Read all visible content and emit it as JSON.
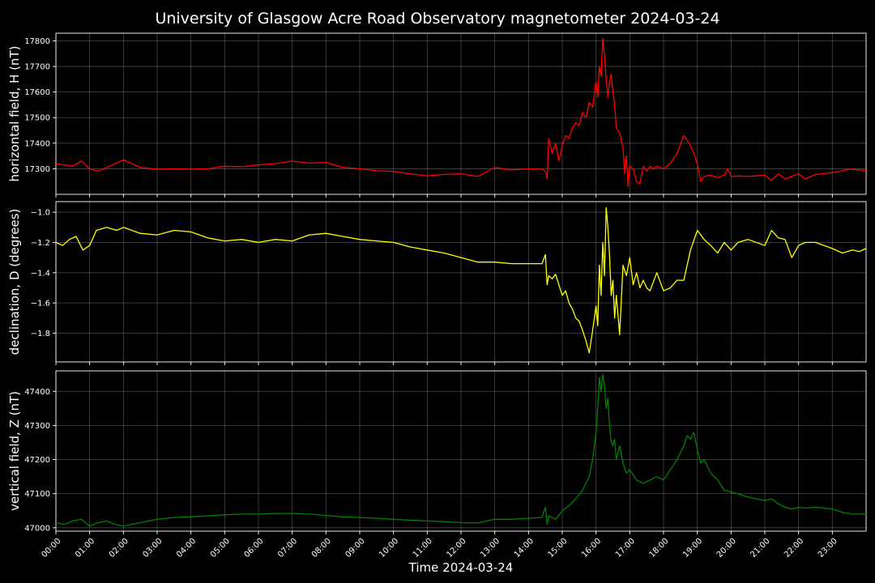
{
  "chart_data": {
    "type": "line",
    "title": "University of Glasgow Acre Road Observatory magnetometer 2024-03-24",
    "xlabel": "Time 2024-03-24",
    "x_unit": "hours",
    "xlim": [
      0,
      24
    ],
    "x_ticks": [
      0,
      1,
      2,
      3,
      4,
      5,
      6,
      7,
      8,
      9,
      10,
      11,
      12,
      13,
      14,
      15,
      16,
      17,
      18,
      19,
      20,
      21,
      22,
      23
    ],
    "x_tick_labels": [
      "00:00",
      "01:00",
      "02:00",
      "03:00",
      "04:00",
      "05:00",
      "06:00",
      "07:00",
      "08:00",
      "09:00",
      "10:00",
      "11:00",
      "12:00",
      "13:00",
      "14:00",
      "15:00",
      "16:00",
      "17:00",
      "18:00",
      "19:00",
      "20:00",
      "21:00",
      "22:00",
      "23:00"
    ],
    "grid": true,
    "background": "#000000",
    "panels": [
      {
        "name": "H",
        "ylabel": "horizontal field, H (nT)",
        "color": "#ff0000",
        "ylim": [
          17200,
          17830
        ],
        "y_ticks": [
          17300,
          17400,
          17500,
          17600,
          17700,
          17800
        ],
        "y_tick_labels": [
          "17300",
          "17400",
          "17500",
          "17600",
          "17700",
          "17800"
        ],
        "x": [
          0,
          0.25,
          0.5,
          0.75,
          1,
          1.25,
          1.5,
          1.75,
          2,
          2.5,
          3,
          3.5,
          4,
          4.5,
          5,
          5.5,
          6,
          6.5,
          7,
          7.5,
          8,
          8.5,
          9,
          9.5,
          10,
          10.5,
          11,
          11.5,
          12,
          12.5,
          13,
          13.5,
          14,
          14.4,
          14.5,
          14.55,
          14.6,
          14.7,
          14.8,
          14.9,
          15,
          15.1,
          15.2,
          15.3,
          15.4,
          15.5,
          15.6,
          15.7,
          15.8,
          15.9,
          16,
          16.05,
          16.1,
          16.15,
          16.2,
          16.25,
          16.3,
          16.35,
          16.4,
          16.45,
          16.5,
          16.55,
          16.6,
          16.7,
          16.8,
          16.85,
          16.9,
          16.95,
          17,
          17.1,
          17.2,
          17.3,
          17.4,
          17.5,
          17.6,
          17.7,
          17.8,
          18,
          18.2,
          18.4,
          18.6,
          18.7,
          18.8,
          18.9,
          19,
          19.1,
          19.2,
          19.4,
          19.6,
          19.8,
          19.9,
          20,
          20.2,
          20.5,
          21,
          21.2,
          21.4,
          21.6,
          21.8,
          22,
          22.2,
          22.5,
          23,
          23.5,
          23.8,
          24
        ],
        "y": [
          17320,
          17315,
          17310,
          17330,
          17300,
          17290,
          17305,
          17320,
          17335,
          17305,
          17298,
          17300,
          17298,
          17300,
          17310,
          17308,
          17315,
          17320,
          17330,
          17322,
          17325,
          17305,
          17300,
          17292,
          17290,
          17280,
          17272,
          17278,
          17280,
          17270,
          17305,
          17295,
          17300,
          17298,
          17290,
          17260,
          17420,
          17360,
          17400,
          17330,
          17390,
          17430,
          17420,
          17460,
          17480,
          17470,
          17520,
          17500,
          17560,
          17540,
          17640,
          17580,
          17700,
          17660,
          17810,
          17740,
          17650,
          17580,
          17640,
          17670,
          17600,
          17550,
          17460,
          17440,
          17380,
          17280,
          17350,
          17230,
          17310,
          17300,
          17250,
          17240,
          17310,
          17290,
          17310,
          17300,
          17310,
          17300,
          17320,
          17360,
          17430,
          17410,
          17390,
          17360,
          17320,
          17250,
          17270,
          17275,
          17265,
          17275,
          17300,
          17270,
          17272,
          17270,
          17275,
          17255,
          17280,
          17260,
          17270,
          17280,
          17260,
          17278,
          17285,
          17298,
          17296,
          17292
        ]
      },
      {
        "name": "D",
        "ylabel": "declination, D (degrees)",
        "color": "#ffff00",
        "ylim": [
          -1.99,
          -0.93
        ],
        "y_ticks": [
          -1.8,
          -1.6,
          -1.4,
          -1.2,
          -1.0
        ],
        "y_tick_labels": [
          "−1.8",
          "−1.6",
          "−1.4",
          "−1.2",
          "−1.0"
        ],
        "x": [
          0,
          0.2,
          0.4,
          0.6,
          0.8,
          1,
          1.2,
          1.5,
          1.8,
          2,
          2.5,
          3,
          3.5,
          4,
          4.5,
          5,
          5.5,
          6,
          6.5,
          7,
          7.5,
          8,
          8.5,
          9,
          9.5,
          10,
          10.5,
          11,
          11.5,
          12,
          12.5,
          13,
          13.5,
          14,
          14.4,
          14.5,
          14.55,
          14.6,
          14.7,
          14.8,
          14.9,
          15,
          15.1,
          15.2,
          15.3,
          15.4,
          15.5,
          15.6,
          15.7,
          15.8,
          15.9,
          16,
          16.05,
          16.1,
          16.15,
          16.2,
          16.25,
          16.3,
          16.35,
          16.4,
          16.45,
          16.5,
          16.55,
          16.6,
          16.7,
          16.8,
          16.9,
          17,
          17.1,
          17.2,
          17.3,
          17.4,
          17.5,
          17.6,
          17.8,
          18,
          18.2,
          18.4,
          18.6,
          18.8,
          19,
          19.2,
          19.4,
          19.6,
          19.8,
          20,
          20.2,
          20.5,
          21,
          21.2,
          21.4,
          21.6,
          21.8,
          22,
          22.2,
          22.5,
          23,
          23.3,
          23.6,
          23.8,
          24
        ],
        "y": [
          -1.2,
          -1.22,
          -1.18,
          -1.16,
          -1.25,
          -1.22,
          -1.12,
          -1.1,
          -1.12,
          -1.1,
          -1.14,
          -1.15,
          -1.12,
          -1.13,
          -1.17,
          -1.19,
          -1.18,
          -1.2,
          -1.18,
          -1.19,
          -1.15,
          -1.14,
          -1.16,
          -1.18,
          -1.19,
          -1.2,
          -1.23,
          -1.25,
          -1.27,
          -1.3,
          -1.33,
          -1.33,
          -1.34,
          -1.34,
          -1.34,
          -1.28,
          -1.48,
          -1.42,
          -1.44,
          -1.41,
          -1.48,
          -1.55,
          -1.52,
          -1.6,
          -1.64,
          -1.7,
          -1.72,
          -1.78,
          -1.85,
          -1.93,
          -1.78,
          -1.62,
          -1.75,
          -1.35,
          -1.55,
          -1.2,
          -1.42,
          -0.97,
          -1.1,
          -1.28,
          -1.55,
          -1.45,
          -1.7,
          -1.55,
          -1.81,
          -1.35,
          -1.42,
          -1.3,
          -1.48,
          -1.4,
          -1.5,
          -1.45,
          -1.5,
          -1.52,
          -1.4,
          -1.52,
          -1.5,
          -1.45,
          -1.45,
          -1.25,
          -1.12,
          -1.18,
          -1.22,
          -1.27,
          -1.2,
          -1.25,
          -1.2,
          -1.18,
          -1.22,
          -1.12,
          -1.17,
          -1.18,
          -1.3,
          -1.22,
          -1.2,
          -1.2,
          -1.24,
          -1.27,
          -1.25,
          -1.26,
          -1.24
        ]
      },
      {
        "name": "Z",
        "ylabel": "vertical field, Z (nT)",
        "color": "#008000",
        "ylim": [
          46990,
          47460
        ],
        "y_ticks": [
          47000,
          47100,
          47200,
          47300,
          47400
        ],
        "y_tick_labels": [
          "47000",
          "47100",
          "47200",
          "47300",
          "47400"
        ],
        "x": [
          0,
          0.25,
          0.5,
          0.75,
          1,
          1.25,
          1.5,
          1.75,
          2,
          2.5,
          3,
          3.5,
          4,
          4.5,
          5,
          5.5,
          6,
          6.5,
          7,
          7.5,
          8,
          8.5,
          9,
          9.5,
          10,
          10.5,
          11,
          11.5,
          12,
          12.5,
          13,
          13.5,
          14,
          14.4,
          14.5,
          14.55,
          14.6,
          14.8,
          15,
          15.2,
          15.4,
          15.6,
          15.7,
          15.8,
          15.9,
          16,
          16.05,
          16.1,
          16.15,
          16.2,
          16.25,
          16.3,
          16.35,
          16.4,
          16.45,
          16.5,
          16.55,
          16.6,
          16.7,
          16.8,
          16.9,
          17,
          17.2,
          17.4,
          17.6,
          17.8,
          18,
          18.2,
          18.4,
          18.6,
          18.7,
          18.8,
          18.9,
          19,
          19.1,
          19.2,
          19.4,
          19.6,
          19.8,
          20,
          20.2,
          20.5,
          21,
          21.2,
          21.4,
          21.6,
          21.8,
          22,
          22.2,
          22.5,
          23,
          23.3,
          23.6,
          23.8,
          24
        ],
        "y": [
          47015,
          47010,
          47020,
          47025,
          47005,
          47015,
          47020,
          47010,
          47005,
          47015,
          47025,
          47030,
          47032,
          47035,
          47038,
          47040,
          47040,
          47042,
          47042,
          47040,
          47036,
          47032,
          47030,
          47028,
          47025,
          47022,
          47020,
          47018,
          47015,
          47014,
          47025,
          47025,
          47028,
          47030,
          47060,
          47010,
          47035,
          47025,
          47050,
          47065,
          47085,
          47110,
          47130,
          47150,
          47200,
          47280,
          47350,
          47440,
          47400,
          47450,
          47420,
          47350,
          47380,
          47300,
          47250,
          47240,
          47260,
          47200,
          47240,
          47190,
          47160,
          47170,
          47140,
          47130,
          47140,
          47150,
          47140,
          47170,
          47200,
          47240,
          47270,
          47260,
          47280,
          47230,
          47190,
          47200,
          47160,
          47140,
          47110,
          47105,
          47100,
          47090,
          47080,
          47085,
          47070,
          47060,
          47055,
          47060,
          47058,
          47060,
          47055,
          47045,
          47040,
          47040,
          47040
        ]
      }
    ]
  }
}
